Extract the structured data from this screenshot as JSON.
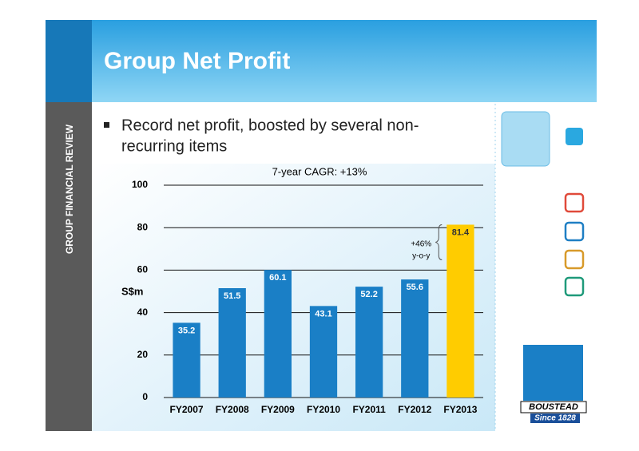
{
  "slide": {
    "title": "Group Net Profit",
    "side_label": "GROUP FINANCIAL REVIEW",
    "bullet": [
      "Record net profit, boosted by several non-",
      "recurring items"
    ],
    "logo": {
      "name": "BOUSTEAD",
      "since": "Since 1828"
    }
  },
  "chart_data": {
    "type": "bar",
    "annotations": [
      "7-year CAGR: +13%",
      "+46%",
      "y-o-y"
    ],
    "ylabel": "S$m",
    "categories": [
      "FY2007",
      "FY2008",
      "FY2009",
      "FY2010",
      "FY2011",
      "FY2012",
      "FY2013"
    ],
    "values": [
      35.2,
      51.5,
      60.1,
      43.1,
      52.2,
      55.6,
      81.4
    ],
    "colors": [
      "#1a7fc6",
      "#1a7fc6",
      "#1a7fc6",
      "#1a7fc6",
      "#1a7fc6",
      "#1a7fc6",
      "#ffcc00"
    ],
    "ylim": [
      0,
      100
    ],
    "yticks": [
      0,
      20,
      40,
      60,
      80,
      100
    ],
    "grid": true
  }
}
